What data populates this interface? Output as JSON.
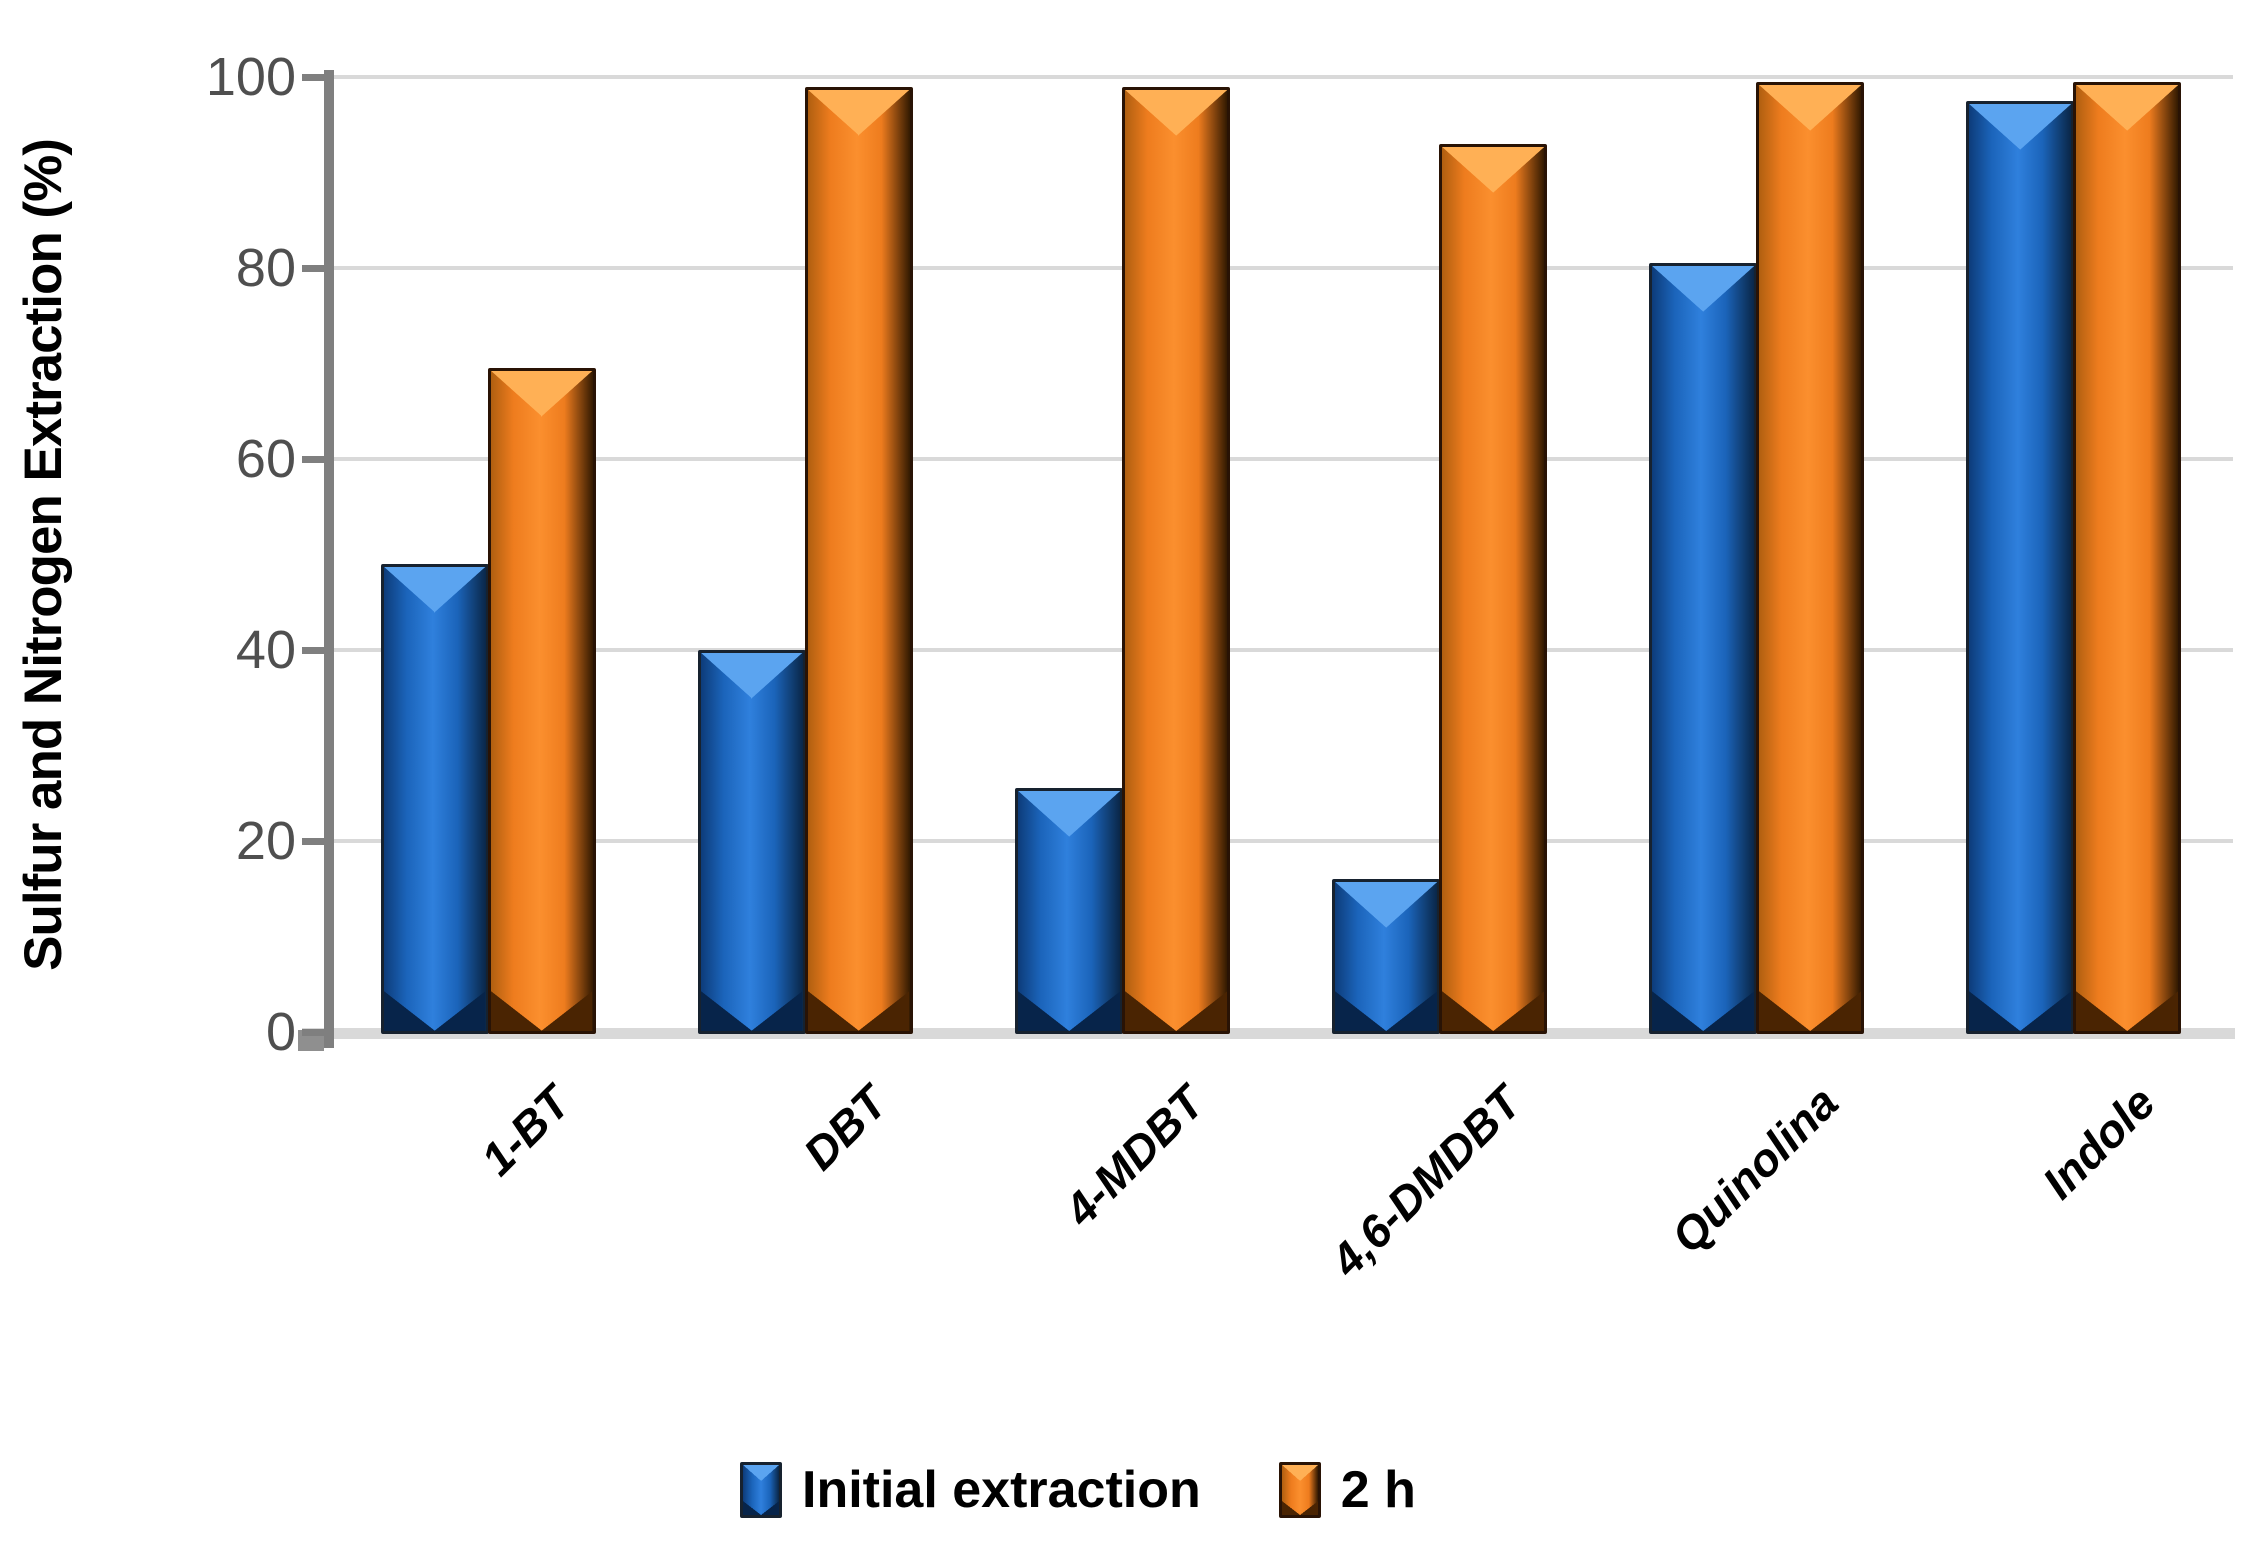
{
  "chart_data": {
    "type": "bar",
    "title": "",
    "categories": [
      "1-BT",
      "DBT",
      "4-MDBT",
      "4,6-DMDBT",
      "Quinolina",
      "Indole"
    ],
    "series": [
      {
        "name": "Initial extraction",
        "color": "#1b64ba",
        "values": [
          49,
          40,
          25.5,
          16,
          80.5,
          97.5
        ]
      },
      {
        "name": "2 h",
        "color": "#ee7c1e",
        "values": [
          69.5,
          99,
          99,
          93,
          99.5,
          99.5
        ]
      }
    ],
    "xlabel": "",
    "ylabel": "Sulfur and Nitrogen Extraction (%)",
    "ylim": [
      0,
      100
    ],
    "yticks": [
      0,
      20,
      40,
      60,
      80,
      100
    ],
    "grid": true,
    "legend_position": "bottom-center",
    "bar_style": "3d-beveled",
    "x_label_rotation_deg": -45
  },
  "colors": {
    "blue_fill": "#1b64ba",
    "blue_highlight": "#5ba4f0",
    "blue_dark": "#0a2748",
    "orange_fill": "#ee7c1e",
    "orange_highlight": "#ffb055",
    "orange_dark": "#331a01",
    "gridline": "#d9d9d9",
    "axis": "#7f7f7f",
    "tick_label": "#4f4f4f",
    "text": "#000000",
    "background": "#ffffff"
  }
}
